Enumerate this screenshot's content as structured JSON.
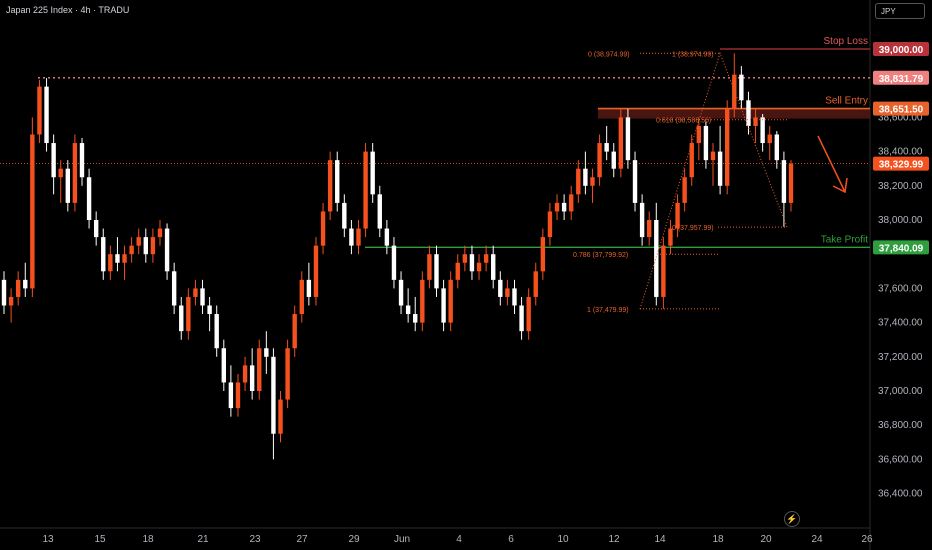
{
  "header": {
    "title": "Japan 225 Index · 4h · TRADU",
    "currency": "JPY"
  },
  "chart_data": {
    "type": "candlestick",
    "y_ticks": [
      36400,
      36600,
      36800,
      37000,
      37200,
      37400,
      37600,
      38000,
      38200,
      38400,
      38600
    ],
    "y_tick_labels": [
      "36,400.00",
      "36,600.00",
      "36,800.00",
      "37,000.00",
      "37,200.00",
      "37,400.00",
      "37,600.00",
      "38,000.00",
      "38,200.00",
      "38,400.00",
      "38,600.00"
    ],
    "x_labels": [
      "13",
      "15",
      "18",
      "21",
      "23",
      "27",
      "29",
      "Jun",
      "4",
      "6",
      "10",
      "12",
      "14",
      "18",
      "20",
      "24",
      "26"
    ],
    "price_tags": [
      {
        "value": 39000.0,
        "label": "39,000.00",
        "color": "#b8323a"
      },
      {
        "value": 38831.79,
        "label": "38,831.79",
        "color": "#f08080"
      },
      {
        "value": 38651.5,
        "label": "38,651.50",
        "color": "#e8622b"
      },
      {
        "value": 38329.99,
        "label": "38,329.99",
        "color": "#f4511e"
      },
      {
        "value": 37840.09,
        "label": "37,840.09",
        "color": "#2e9e3e"
      }
    ],
    "annotations": {
      "stop_loss": "Stop Loss",
      "sell_entry": "Sell Entry",
      "take_profit": "Take Profit",
      "fib_upper": [
        "0 (38,974.99)",
        "1 (38,974.99)",
        "0.618 (38,586.56)",
        "0 (37,957.99)"
      ],
      "fib_lower": [
        "0.786 (37,799.92)",
        "1 (37,479.99)"
      ]
    },
    "levels": {
      "stop_loss": 39000,
      "resistance": 38831.79,
      "sell_entry": 38651.5,
      "current": 38329.99,
      "take_profit": 37840.09
    },
    "colors": {
      "up": "#f4511e",
      "down": "#ffffff"
    },
    "candles": [
      [
        37650,
        37700,
        37450,
        37500
      ],
      [
        37500,
        37600,
        37400,
        37550
      ],
      [
        37550,
        37700,
        37500,
        37650
      ],
      [
        37650,
        37750,
        37550,
        37600
      ],
      [
        37600,
        38600,
        37550,
        38500
      ],
      [
        38500,
        38820,
        38450,
        38780
      ],
      [
        38780,
        38830,
        38400,
        38450
      ],
      [
        38450,
        38500,
        38150,
        38250
      ],
      [
        38250,
        38350,
        38100,
        38300
      ],
      [
        38300,
        38350,
        38050,
        38100
      ],
      [
        38100,
        38500,
        38050,
        38450
      ],
      [
        38450,
        38480,
        38200,
        38250
      ],
      [
        38250,
        38300,
        37950,
        38000
      ],
      [
        38000,
        38050,
        37850,
        37900
      ],
      [
        37900,
        37950,
        37650,
        37700
      ],
      [
        37700,
        37850,
        37650,
        37800
      ],
      [
        37800,
        37900,
        37700,
        37750
      ],
      [
        37750,
        37850,
        37650,
        37800
      ],
      [
        37800,
        37900,
        37750,
        37850
      ],
      [
        37850,
        37950,
        37800,
        37900
      ],
      [
        37900,
        37950,
        37750,
        37800
      ],
      [
        37800,
        37950,
        37750,
        37900
      ],
      [
        37900,
        38000,
        37850,
        37950
      ],
      [
        37950,
        37980,
        37650,
        37700
      ],
      [
        37700,
        37750,
        37450,
        37500
      ],
      [
        37500,
        37550,
        37300,
        37350
      ],
      [
        37350,
        37600,
        37300,
        37550
      ],
      [
        37550,
        37650,
        37500,
        37600
      ],
      [
        37600,
        37650,
        37450,
        37500
      ],
      [
        37500,
        37550,
        37350,
        37450
      ],
      [
        37450,
        37500,
        37200,
        37250
      ],
      [
        37250,
        37300,
        37000,
        37050
      ],
      [
        37050,
        37150,
        36850,
        36900
      ],
      [
        36900,
        37100,
        36850,
        37050
      ],
      [
        37050,
        37200,
        37000,
        37150
      ],
      [
        37150,
        37250,
        36950,
        37000
      ],
      [
        37000,
        37300,
        36950,
        37250
      ],
      [
        37250,
        37350,
        37100,
        37200
      ],
      [
        37200,
        37250,
        36600,
        36750
      ],
      [
        36750,
        37000,
        36700,
        36950
      ],
      [
        36950,
        37300,
        36900,
        37250
      ],
      [
        37250,
        37500,
        37200,
        37450
      ],
      [
        37450,
        37700,
        37400,
        37650
      ],
      [
        37650,
        37750,
        37500,
        37550
      ],
      [
        37550,
        37900,
        37500,
        37850
      ],
      [
        37850,
        38100,
        37800,
        38050
      ],
      [
        38050,
        38400,
        38000,
        38350
      ],
      [
        38350,
        38400,
        38050,
        38100
      ],
      [
        38100,
        38150,
        37900,
        37950
      ],
      [
        37950,
        38000,
        37800,
        37850
      ],
      [
        37850,
        38000,
        37800,
        37950
      ],
      [
        37950,
        38450,
        37900,
        38400
      ],
      [
        38400,
        38450,
        38100,
        38150
      ],
      [
        38150,
        38200,
        37900,
        37950
      ],
      [
        37950,
        38000,
        37800,
        37850
      ],
      [
        37850,
        37900,
        37600,
        37650
      ],
      [
        37650,
        37700,
        37450,
        37500
      ],
      [
        37500,
        37600,
        37400,
        37450
      ],
      [
        37450,
        37550,
        37350,
        37400
      ],
      [
        37400,
        37700,
        37350,
        37650
      ],
      [
        37650,
        37850,
        37600,
        37800
      ],
      [
        37800,
        37850,
        37550,
        37600
      ],
      [
        37600,
        37650,
        37350,
        37400
      ],
      [
        37400,
        37700,
        37350,
        37650
      ],
      [
        37650,
        37800,
        37600,
        37750
      ],
      [
        37750,
        37850,
        37700,
        37800
      ],
      [
        37800,
        37850,
        37650,
        37700
      ],
      [
        37700,
        37800,
        37650,
        37750
      ],
      [
        37750,
        37850,
        37700,
        37800
      ],
      [
        37800,
        37850,
        37600,
        37650
      ],
      [
        37650,
        37700,
        37500,
        37550
      ],
      [
        37550,
        37650,
        37500,
        37600
      ],
      [
        37600,
        37650,
        37450,
        37500
      ],
      [
        37500,
        37550,
        37300,
        37350
      ],
      [
        37350,
        37600,
        37300,
        37550
      ],
      [
        37550,
        37750,
        37500,
        37700
      ],
      [
        37700,
        37950,
        37650,
        37900
      ],
      [
        37900,
        38100,
        37850,
        38050
      ],
      [
        38050,
        38150,
        38000,
        38100
      ],
      [
        38100,
        38150,
        38000,
        38050
      ],
      [
        38050,
        38200,
        38000,
        38150
      ],
      [
        38150,
        38350,
        38100,
        38300
      ],
      [
        38300,
        38400,
        38150,
        38200
      ],
      [
        38200,
        38300,
        38100,
        38250
      ],
      [
        38250,
        38500,
        38200,
        38450
      ],
      [
        38450,
        38550,
        38350,
        38400
      ],
      [
        38400,
        38450,
        38250,
        38300
      ],
      [
        38300,
        38650,
        38250,
        38600
      ],
      [
        38600,
        38650,
        38300,
        38350
      ],
      [
        38350,
        38400,
        38050,
        38100
      ],
      [
        38100,
        38150,
        37850,
        37900
      ],
      [
        37900,
        38050,
        37850,
        38000
      ],
      [
        38000,
        38100,
        37500,
        37550
      ],
      [
        37550,
        37900,
        37480,
        37850
      ],
      [
        37850,
        38000,
        37800,
        37950
      ],
      [
        37950,
        38150,
        37900,
        38100
      ],
      [
        38100,
        38300,
        38050,
        38250
      ],
      [
        38250,
        38500,
        38200,
        38450
      ],
      [
        38450,
        38600,
        38350,
        38550
      ],
      [
        38550,
        38580,
        38300,
        38350
      ],
      [
        38350,
        38450,
        38200,
        38400
      ],
      [
        38400,
        38550,
        38150,
        38200
      ],
      [
        38200,
        38700,
        38150,
        38650
      ],
      [
        38650,
        38975,
        38600,
        38850
      ],
      [
        38850,
        38900,
        38650,
        38700
      ],
      [
        38700,
        38750,
        38500,
        38550
      ],
      [
        38550,
        38650,
        38450,
        38600
      ],
      [
        38600,
        38620,
        38400,
        38450
      ],
      [
        38450,
        38550,
        38350,
        38500
      ],
      [
        38500,
        38520,
        38300,
        38350
      ],
      [
        38350,
        38400,
        37960,
        38100
      ],
      [
        38100,
        38350,
        38050,
        38330
      ]
    ]
  }
}
